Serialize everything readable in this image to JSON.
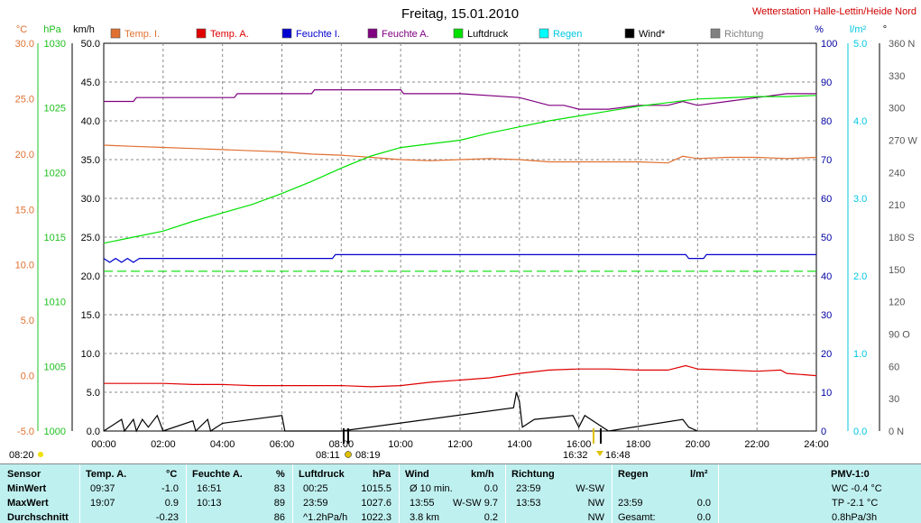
{
  "header": {
    "title": "Freitag, 15.01.2010",
    "station": "Wetterstation Halle-Lettin/Heide Nord"
  },
  "axes": {
    "temp": {
      "unit": "°C",
      "ticks": [
        "30.0",
        "25.0",
        "20.0",
        "15.0",
        "10.0",
        "5.0",
        "0.0",
        "-5.0"
      ],
      "color": "#e07030"
    },
    "press": {
      "unit": "hPa",
      "ticks": [
        "1030",
        "1025",
        "1020",
        "1015",
        "1010",
        "1005",
        "1000"
      ],
      "color": "#20c020"
    },
    "wind": {
      "unit": "km/h",
      "ticks": [
        "50.0",
        "45.0",
        "40.0",
        "35.0",
        "30.0",
        "25.0",
        "20.0",
        "15.0",
        "10.0",
        "5.0",
        "0.0"
      ]
    },
    "hum": {
      "unit": "%",
      "ticks": [
        "100",
        "90",
        "80",
        "70",
        "60",
        "50",
        "40",
        "30",
        "20",
        "10",
        "0"
      ],
      "color": "#0000a0"
    },
    "rain": {
      "unit": "l/m²",
      "ticks": [
        "5.0",
        "4.0",
        "3.0",
        "2.0",
        "1.0",
        "0.0"
      ],
      "color": "#00c8e0"
    },
    "dir": {
      "unit": "°",
      "ticks": [
        "360 N",
        "330",
        "300",
        "270 W",
        "240",
        "210",
        "180 S",
        "150",
        "120",
        "90 O",
        "60",
        "30",
        "0 N"
      ]
    },
    "time_ticks": [
      "00:00",
      "02:00",
      "04:00",
      "06:00",
      "08:00",
      "10:00",
      "12:00",
      "14:00",
      "16:00",
      "18:00",
      "20:00",
      "22:00",
      "24:00"
    ]
  },
  "legend": [
    {
      "label": "Temp. I.",
      "color": "#e07030"
    },
    {
      "label": "Temp. A.",
      "color": "#e00000"
    },
    {
      "label": "Feuchte I.",
      "color": "#0000d0"
    },
    {
      "label": "Feuchte A.",
      "color": "#800080"
    },
    {
      "label": "Luftdruck",
      "color": "#00e000"
    },
    {
      "label": "Regen",
      "color": "#00ffff"
    },
    {
      "label": "Wind*",
      "color": "#000000"
    },
    {
      "label": "Richtung",
      "color": "#808080"
    }
  ],
  "sun": {
    "sunrise": "08:20",
    "twilight_morning": "08:11",
    "twilight_morning_end": "08:19",
    "sunset_start": "16:32",
    "sunset_end": "16:48"
  },
  "chart_data": {
    "type": "line",
    "x_unit": "hours",
    "xlim": [
      0,
      24
    ],
    "series": [
      {
        "name": "Temp. I.",
        "axis": "temp",
        "color": "#e07030",
        "x": [
          0,
          1,
          2,
          3,
          4,
          5,
          6,
          7,
          8,
          9,
          10,
          11,
          12,
          13,
          14,
          15,
          16,
          17,
          18,
          19,
          19.5,
          20,
          21,
          22,
          23,
          24
        ],
        "y": [
          20.8,
          20.7,
          20.6,
          20.5,
          20.4,
          20.3,
          20.2,
          20.0,
          19.9,
          19.7,
          19.5,
          19.4,
          19.5,
          19.6,
          19.5,
          19.3,
          19.3,
          19.3,
          19.3,
          19.2,
          19.8,
          19.6,
          19.7,
          19.7,
          19.6,
          19.7
        ]
      },
      {
        "name": "Temp. A.",
        "axis": "temp",
        "color": "#e00000",
        "x": [
          0,
          1,
          2,
          3,
          4,
          5,
          6,
          7,
          8,
          9,
          10,
          11,
          12,
          13,
          14,
          15,
          16,
          17,
          18,
          19,
          19.6,
          20,
          21,
          22,
          22.8,
          23,
          24
        ],
        "y": [
          -0.7,
          -0.7,
          -0.7,
          -0.8,
          -0.8,
          -0.9,
          -0.9,
          -0.9,
          -0.9,
          -1.0,
          -0.9,
          -0.6,
          -0.4,
          -0.2,
          0.2,
          0.5,
          0.6,
          0.6,
          0.5,
          0.5,
          0.9,
          0.6,
          0.5,
          0.4,
          0.5,
          0.2,
          0.0
        ]
      },
      {
        "name": "Feuchte I.",
        "axis": "hum",
        "color": "#0000d0",
        "x": [
          0,
          0.2,
          0.4,
          0.6,
          0.8,
          1.0,
          1.2,
          2,
          4,
          6,
          7.7,
          7.8,
          10,
          14,
          19.6,
          19.7,
          20.2,
          20.3,
          24
        ],
        "y": [
          44.5,
          43.5,
          44.5,
          43.5,
          44.5,
          43.5,
          44.5,
          44.5,
          44.5,
          44.5,
          44.5,
          45.5,
          45.5,
          45.5,
          45.5,
          44.5,
          44.5,
          45.5,
          45.5
        ]
      },
      {
        "name": "Feuchte A.",
        "axis": "hum",
        "color": "#800080",
        "x": [
          0,
          1,
          1.1,
          4.4,
          4.5,
          7,
          7.1,
          10,
          10.1,
          12,
          14,
          15,
          15.5,
          16,
          17,
          18,
          19,
          19.5,
          20,
          21,
          22,
          23,
          24
        ],
        "y": [
          85,
          85,
          86,
          86,
          87,
          87,
          88,
          88,
          87,
          87,
          86,
          84,
          84,
          83,
          83,
          84,
          84,
          85,
          84,
          85,
          86,
          87,
          87
        ]
      },
      {
        "name": "Luftdruck",
        "axis": "press",
        "color": "#00e000",
        "x": [
          0,
          1,
          2,
          3,
          4,
          5,
          6,
          7,
          8,
          9,
          10,
          11,
          12,
          13,
          14,
          15,
          16,
          17,
          18,
          19,
          20,
          21,
          22,
          23,
          24
        ],
        "y": [
          1015.5,
          1016.0,
          1016.5,
          1017.3,
          1018.0,
          1018.7,
          1019.6,
          1020.6,
          1021.7,
          1022.7,
          1023.4,
          1023.7,
          1024.0,
          1024.6,
          1025.1,
          1025.6,
          1026.0,
          1026.4,
          1026.8,
          1027.1,
          1027.4,
          1027.5,
          1027.6,
          1027.6,
          1027.7
        ]
      },
      {
        "name": "Wind*",
        "axis": "wind",
        "color": "#000000",
        "x": [
          0,
          0.6,
          0.7,
          1.0,
          1.1,
          1.3,
          1.5,
          1.8,
          2.0,
          3.0,
          3.1,
          3.5,
          3.6,
          4.0,
          6.0,
          6.1,
          8.0,
          13.8,
          13.9,
          14.0,
          14.1,
          14.5,
          15.8,
          16.0,
          16.2,
          16.8,
          17.0,
          19.5,
          19.7,
          20.0
        ],
        "y": [
          0,
          1.5,
          0,
          1.5,
          0,
          1.5,
          0.5,
          2.0,
          0,
          1.3,
          0,
          1.5,
          0,
          1.0,
          2.0,
          0,
          0,
          3.0,
          5.0,
          3.8,
          0.5,
          1.5,
          2.0,
          0.5,
          2.0,
          0.5,
          0,
          1.5,
          0.5,
          0
        ]
      },
      {
        "name": "Luftdruck Ø",
        "axis": "wind",
        "color": "#00e000",
        "dashed": true,
        "x": [
          0,
          24
        ],
        "y": [
          20.6,
          20.6
        ]
      }
    ],
    "ylim_temp": [
      -5,
      30
    ],
    "ylim_press": [
      1000,
      1032
    ],
    "ylim_wind": [
      0,
      50
    ],
    "ylim_hum": [
      0,
      100
    ],
    "ylim_rain": [
      0,
      5
    ],
    "grid": true
  },
  "table": {
    "headers": {
      "sensor": "Sensor",
      "temp": "Temp. A.",
      "temp_unit": "°C",
      "hum": "Feuchte A.",
      "hum_unit": "%",
      "press": "Luftdruck",
      "press_unit": "hPa",
      "wind": "Wind",
      "wind_unit": "km/h",
      "dir": "Richtung",
      "rain": "Regen",
      "rain_unit": "l/m²",
      "pmv": "PMV-1:0"
    },
    "rows": [
      {
        "label": "MinWert",
        "temp_t": "09:37",
        "temp_v": "-1.0",
        "hum_t": "16:51",
        "hum_v": "83",
        "press_t": "00:25",
        "press_v": "1015.5",
        "wind_t": "Ø 10 min.",
        "wind_v": "0.0",
        "dir_t": "23:59",
        "dir_v": "W-SW",
        "rain_t": "",
        "rain_v": "",
        "pmv": "WC -0.4 °C"
      },
      {
        "label": "MaxWert",
        "temp_t": "19:07",
        "temp_v": "0.9",
        "hum_t": "10:13",
        "hum_v": "89",
        "press_t": "23:59",
        "press_v": "1027.6",
        "wind_t": "13:55",
        "wind_d": "W-SW",
        "wind_v": "9.7",
        "dir_t": "13:53",
        "dir_v": "NW",
        "rain_t": "23:59",
        "rain_v": "0.0",
        "pmv": "TP -2.1 °C"
      },
      {
        "label": "Durchschnitt",
        "temp_t": "",
        "temp_v": "-0.23",
        "hum_t": "",
        "hum_v": "86",
        "press_t": "^1.2hPa/h",
        "press_v": "1022.3",
        "wind_t": "3.8 km",
        "wind_v": "0.2",
        "dir_t": "",
        "dir_v": "NW",
        "rain_t": "Gesamt:",
        "rain_v": "0.0",
        "pmv": "0.8hPa/3h"
      }
    ]
  }
}
